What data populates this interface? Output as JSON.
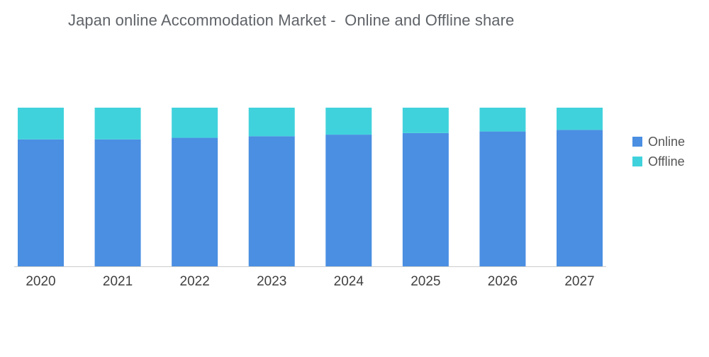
{
  "title": "Japan online Accommodation Market -  Online and Offline share",
  "colors": {
    "online": "#4a8fe2",
    "offline": "#40d2dc",
    "axis": "#cccccc"
  },
  "legend": [
    {
      "label": "Online",
      "color": "#4a8fe2"
    },
    {
      "label": "Offline",
      "color": "#40d2dc"
    }
  ],
  "chart_data": {
    "type": "bar",
    "stacked": true,
    "categories": [
      "2020",
      "2021",
      "2022",
      "2023",
      "2024",
      "2025",
      "2026",
      "2027"
    ],
    "series": [
      {
        "name": "Online",
        "values": [
          80,
          80,
          81,
          82,
          83,
          84,
          85,
          86
        ]
      },
      {
        "name": "Offline",
        "values": [
          20,
          20,
          19,
          18,
          17,
          16,
          15,
          14
        ]
      }
    ],
    "ylim": [
      0,
      100
    ],
    "grid": false,
    "legend_position": "right"
  }
}
